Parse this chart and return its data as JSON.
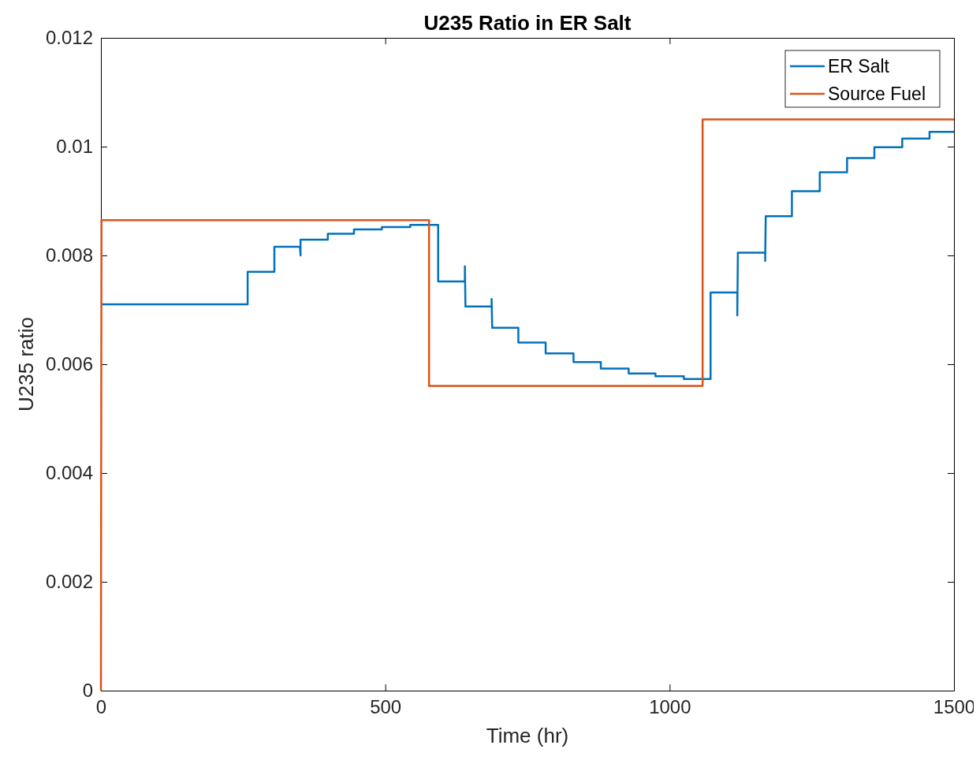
{
  "chart_data": {
    "type": "line",
    "title": "U235 Ratio in ER Salt",
    "xlabel": "Time (hr)",
    "ylabel": "U235 ratio",
    "xlim": [
      0,
      1500
    ],
    "xticks": [
      0,
      500,
      1000,
      1500
    ],
    "ylim": [
      0,
      0.012
    ],
    "yticks": [
      0,
      0.002,
      0.004,
      0.006,
      0.008,
      0.01,
      0.012
    ],
    "grid": false,
    "legend": "top right",
    "line_style": "solid",
    "marker": "none",
    "series": [
      {
        "name": "ER Salt",
        "color": "#0072bd",
        "x": [
          0,
          258,
          258,
          305,
          305,
          350,
          351,
          351,
          399,
          399,
          445,
          445,
          494,
          494,
          544,
          544,
          593,
          593,
          640,
          640,
          641,
          687,
          687,
          688,
          734,
          734,
          782,
          782,
          831,
          831,
          879,
          879,
          928,
          928,
          975,
          975,
          1025,
          1025,
          1072,
          1072,
          1119,
          1119,
          1120,
          1168,
          1168,
          1169,
          1215,
          1215,
          1264,
          1264,
          1312,
          1312,
          1360,
          1360,
          1409,
          1409,
          1457,
          1457,
          1500
        ],
        "values": [
          0.0071,
          0.0071,
          0.0077,
          0.0077,
          0.00816,
          0.00816,
          0.008,
          0.00829,
          0.00829,
          0.0084,
          0.0084,
          0.00848,
          0.00848,
          0.00852,
          0.00852,
          0.00856,
          0.00856,
          0.00752,
          0.00752,
          0.0078,
          0.00706,
          0.00706,
          0.0072,
          0.00667,
          0.00667,
          0.0064,
          0.0064,
          0.0062,
          0.0062,
          0.00604,
          0.00604,
          0.00592,
          0.00592,
          0.00583,
          0.00583,
          0.00578,
          0.00578,
          0.00573,
          0.00573,
          0.00732,
          0.00732,
          0.0069,
          0.00805,
          0.00805,
          0.0079,
          0.00872,
          0.00872,
          0.00918,
          0.00918,
          0.00953,
          0.00953,
          0.00979,
          0.00979,
          0.00999,
          0.00999,
          0.01015,
          0.01015,
          0.01027,
          0.01027
        ]
      },
      {
        "name": "Source Fuel",
        "color": "#d95319",
        "x": [
          0,
          1,
          577,
          577,
          1058,
          1058,
          1500
        ],
        "values": [
          0,
          0.00865,
          0.00865,
          0.0056,
          0.0056,
          0.0105,
          0.0105
        ]
      }
    ]
  }
}
